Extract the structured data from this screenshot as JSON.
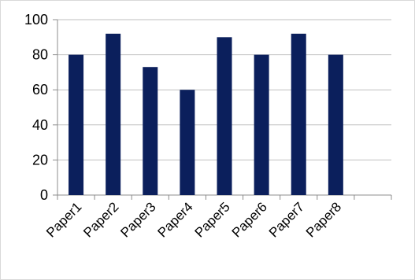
{
  "chart_data": {
    "type": "bar",
    "categories": [
      "Paper1",
      "Paper2",
      "Paper3",
      "Paper4",
      "Paper5",
      "Paper6",
      "Paper7",
      "Paper8"
    ],
    "values": [
      80,
      92,
      73,
      60,
      90,
      80,
      92,
      80
    ],
    "yticks": [
      "0",
      "20",
      "40",
      "60",
      "80",
      "100"
    ],
    "ylim": [
      0,
      100
    ],
    "title": "",
    "xlabel": "",
    "ylabel": "",
    "grid": true,
    "legend": "none",
    "bar_color": "#0b1f5c",
    "grid_color": "#bfbfbf",
    "axis_color": "#8c8c8c"
  }
}
